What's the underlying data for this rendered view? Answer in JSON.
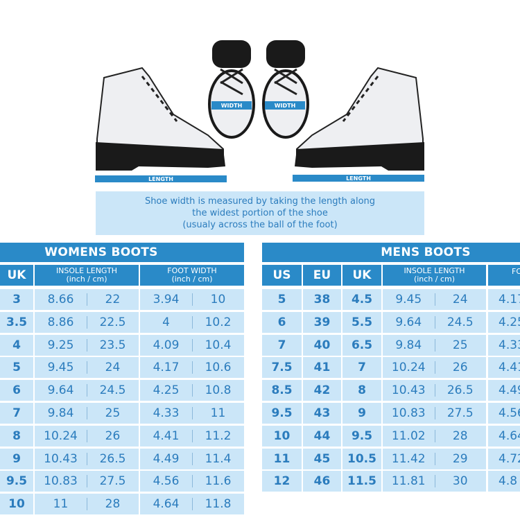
{
  "measure": {
    "width_label": "WIDTH",
    "length_label": "LENGTH"
  },
  "note": {
    "line1": "Shoe width is measured by taking the length along",
    "line2": "the widest portion of the shoe",
    "line3": "(usualy across the ball of the foot)"
  },
  "womens": {
    "title": "WOMENS BOOTS",
    "headers": {
      "uk": "UK",
      "insole": "INSOLE LENGTH",
      "insole_unit": "(inch / cm)",
      "width": "FOOT WIDTH",
      "width_unit": "(inch / cm)"
    },
    "rows": [
      [
        "3",
        "8.66",
        "22",
        "3.94",
        "10"
      ],
      [
        "3.5",
        "8.86",
        "22.5",
        "4",
        "10.2"
      ],
      [
        "4",
        "9.25",
        "23.5",
        "4.09",
        "10.4"
      ],
      [
        "5",
        "9.45",
        "24",
        "4.17",
        "10.6"
      ],
      [
        "6",
        "9.64",
        "24.5",
        "4.25",
        "10.8"
      ],
      [
        "7",
        "9.84",
        "25",
        "4.33",
        "11"
      ],
      [
        "8",
        "10.24",
        "26",
        "4.41",
        "11.2"
      ],
      [
        "9",
        "10.43",
        "26.5",
        "4.49",
        "11.4"
      ],
      [
        "9.5",
        "10.83",
        "27.5",
        "4.56",
        "11.6"
      ],
      [
        "10",
        "11",
        "28",
        "4.64",
        "11.8"
      ]
    ]
  },
  "mens": {
    "title": "MENS BOOTS",
    "headers": {
      "us": "US",
      "eu": "EU",
      "uk": "UK",
      "insole": "INSOLE LENGTH",
      "insole_unit": "(inch / cm)",
      "width": "FO"
    },
    "rows": [
      [
        "5",
        "38",
        "4.5",
        "9.45",
        "24",
        "4.17"
      ],
      [
        "6",
        "39",
        "5.5",
        "9.64",
        "24.5",
        "4.25"
      ],
      [
        "7",
        "40",
        "6.5",
        "9.84",
        "25",
        "4.33"
      ],
      [
        "7.5",
        "41",
        "7",
        "10.24",
        "26",
        "4.41"
      ],
      [
        "8.5",
        "42",
        "8",
        "10.43",
        "26.5",
        "4.49"
      ],
      [
        "9.5",
        "43",
        "9",
        "10.83",
        "27.5",
        "4.56"
      ],
      [
        "10",
        "44",
        "9.5",
        "11.02",
        "28",
        "4.64"
      ],
      [
        "11",
        "45",
        "10.5",
        "11.42",
        "29",
        "4.72"
      ],
      [
        "12",
        "46",
        "11.5",
        "11.81",
        "30",
        "4.8"
      ]
    ]
  },
  "colors": {
    "header_blue": "#2a8ac8",
    "cell_blue": "#cbe6f8",
    "text_blue": "#2b7cbd"
  }
}
